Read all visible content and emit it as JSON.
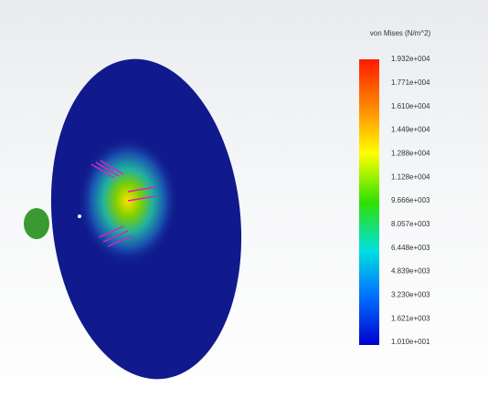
{
  "legend": {
    "title": "von Mises (N/m^2)",
    "labels": [
      "1.932e+004",
      "1.771e+004",
      "1.610e+004",
      "1.449e+004",
      "1.288e+004",
      "1.128e+004",
      "9.666e+003",
      "8.057e+003",
      "6.448e+003",
      "4.839e+003",
      "3.230e+003",
      "1.621e+003",
      "1.010e+001"
    ]
  }
}
